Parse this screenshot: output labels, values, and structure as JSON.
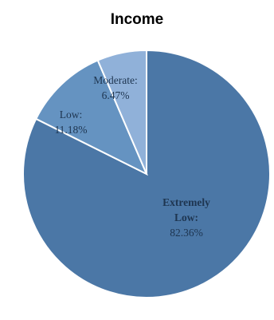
{
  "chart_data": {
    "type": "pie",
    "title": "Income",
    "slices": [
      {
        "name": "Extremely Low",
        "value": 82.36,
        "label_lines": [
          "Extremely",
          "Low:",
          "82.36%"
        ],
        "color": "#4b77a6",
        "bold": true
      },
      {
        "name": "Low",
        "value": 11.18,
        "label_lines": [
          "Low:",
          "11.18%"
        ],
        "color": "#6593c1",
        "bold": false
      },
      {
        "name": "Moderate",
        "value": 6.47,
        "label_lines": [
          "Moderate:",
          "6.47%"
        ],
        "color": "#90b1d9",
        "bold": false
      }
    ],
    "start": "top",
    "direction": "clockwise"
  }
}
